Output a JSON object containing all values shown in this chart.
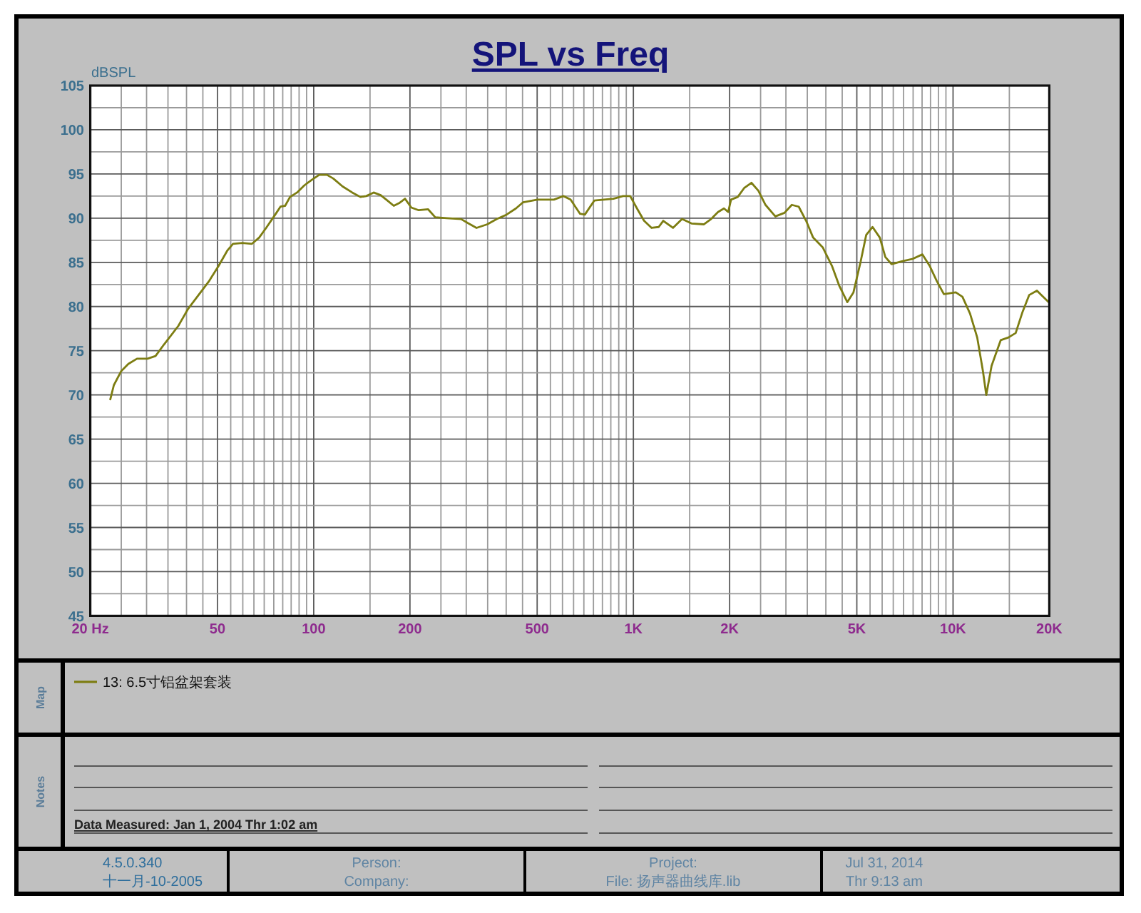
{
  "chart_data": {
    "type": "line",
    "title": "SPL vs Freq",
    "ylabel": "dBSPL",
    "log": "x",
    "xlim": [
      20,
      20000
    ],
    "ylim": [
      45,
      105
    ],
    "xticks": [
      {
        "value": 20,
        "label": "20 Hz"
      },
      {
        "value": 25,
        "label": null
      },
      {
        "value": 30,
        "label": null
      },
      {
        "value": 35,
        "label": null
      },
      {
        "value": 40,
        "label": null
      },
      {
        "value": 45,
        "label": null
      },
      50,
      {
        "value": 55,
        "label": null
      },
      {
        "value": 60,
        "label": null
      },
      {
        "value": 65,
        "label": null
      },
      {
        "value": 70,
        "label": null
      },
      {
        "value": 75,
        "label": null
      },
      {
        "value": 80,
        "label": null
      },
      {
        "value": 85,
        "label": null
      },
      {
        "value": 90,
        "label": null
      },
      {
        "value": 95,
        "label": null
      },
      100,
      {
        "value": 150,
        "label": null
      },
      200,
      {
        "value": 250,
        "label": null
      },
      {
        "value": 300,
        "label": null
      },
      {
        "value": 350,
        "label": null
      },
      {
        "value": 400,
        "label": null
      },
      {
        "value": 450,
        "label": null
      },
      500,
      {
        "value": 550,
        "label": null
      },
      {
        "value": 600,
        "label": null
      },
      {
        "value": 650,
        "label": null
      },
      {
        "value": 700,
        "label": null
      },
      {
        "value": 750,
        "label": null
      },
      {
        "value": 800,
        "label": null
      },
      {
        "value": 850,
        "label": null
      },
      {
        "value": 900,
        "label": null
      },
      {
        "value": 950,
        "label": null
      },
      {
        "value": 1000,
        "label": "1K"
      },
      {
        "value": 1500,
        "label": null
      },
      {
        "value": 2000,
        "label": "2K"
      },
      {
        "value": 2500,
        "label": null
      },
      {
        "value": 3000,
        "label": null
      },
      {
        "value": 3500,
        "label": null
      },
      {
        "value": 4000,
        "label": null
      },
      {
        "value": 4500,
        "label": null
      },
      {
        "value": 5000,
        "label": "5K"
      },
      {
        "value": 5500,
        "label": null
      },
      {
        "value": 6000,
        "label": null
      },
      {
        "value": 6500,
        "label": null
      },
      {
        "value": 7000,
        "label": null
      },
      {
        "value": 7500,
        "label": null
      },
      {
        "value": 8000,
        "label": null
      },
      {
        "value": 8500,
        "label": null
      },
      {
        "value": 9000,
        "label": null
      },
      {
        "value": 9500,
        "label": null
      },
      {
        "value": 10000,
        "label": "10K"
      },
      {
        "value": 15000,
        "label": null
      },
      {
        "value": 20000,
        "label": "20K"
      }
    ],
    "yticks": [
      45,
      {
        "value": 47.5,
        "label": null
      },
      50,
      {
        "value": 52.5,
        "label": null
      },
      55,
      {
        "value": 57.5,
        "label": null
      },
      60,
      {
        "value": 62.5,
        "label": null
      },
      65,
      {
        "value": 67.5,
        "label": null
      },
      70,
      {
        "value": 72.5,
        "label": null
      },
      75,
      {
        "value": 77.5,
        "label": null
      },
      80,
      {
        "value": 82.5,
        "label": null
      },
      85,
      {
        "value": 87.5,
        "label": null
      },
      90,
      {
        "value": 92.5,
        "label": null
      },
      95,
      {
        "value": 97.5,
        "label": null
      },
      100,
      {
        "value": 102.5,
        "label": null
      },
      105
    ],
    "grid": true,
    "legend": "bottom",
    "series": [
      {
        "name": "13: 6.5寸铝盆架套装",
        "color": "#7d7d12",
        "x": [
          23.1,
          23.7,
          25.0,
          26.3,
          28.0,
          30.2,
          32.0,
          34.0,
          37.7,
          40.4,
          43.2,
          47.1,
          50.4,
          53.6,
          55.9,
          59.8,
          64.1,
          67.5,
          71.0,
          76.1,
          78.7,
          81.4,
          84.3,
          88.7,
          93.4,
          98.3,
          104,
          110,
          115,
          123,
          132,
          140,
          146,
          154,
          162,
          170,
          178,
          185,
          193,
          202,
          213,
          228,
          240,
          261,
          289,
          305,
          323,
          349,
          374,
          401,
          429,
          452,
          501,
          564,
          604,
          636,
          681,
          705,
          755,
          809,
          866,
          928,
          977,
          1030,
          1080,
          1140,
          1200,
          1240,
          1330,
          1420,
          1520,
          1660,
          1750,
          1840,
          1920,
          1980,
          2020,
          2120,
          2220,
          2340,
          2460,
          2590,
          2780,
          2970,
          3130,
          3290,
          3470,
          3650,
          3910,
          4180,
          4400,
          4670,
          4880,
          5140,
          5350,
          5600,
          5900,
          6140,
          6420,
          6880,
          7490,
          8020,
          8450,
          8890,
          9360,
          10200,
          10700,
          11300,
          11900,
          12400,
          12700,
          13200,
          14100,
          14900,
          15700,
          16500,
          17300,
          18300,
          18900,
          19900
        ],
        "values": [
          69.5,
          71.1,
          72.7,
          73.5,
          74.1,
          74.1,
          74.4,
          75.7,
          77.8,
          79.7,
          81.1,
          82.9,
          84.6,
          86.3,
          87.1,
          87.2,
          87.1,
          87.8,
          88.9,
          90.5,
          91.3,
          91.4,
          92.4,
          92.9,
          93.7,
          94.3,
          94.9,
          94.9,
          94.5,
          93.6,
          92.9,
          92.4,
          92.5,
          92.9,
          92.6,
          92.0,
          91.4,
          91.7,
          92.2,
          91.2,
          90.9,
          91.0,
          90.1,
          90.0,
          89.9,
          89.4,
          88.9,
          89.3,
          89.9,
          90.4,
          91.1,
          91.8,
          92.1,
          92.1,
          92.5,
          92.1,
          90.5,
          90.4,
          92.0,
          92.1,
          92.2,
          92.5,
          92.5,
          91.0,
          89.7,
          88.9,
          89.0,
          89.7,
          88.9,
          89.9,
          89.4,
          89.3,
          89.9,
          90.7,
          91.1,
          90.7,
          92.1,
          92.4,
          93.4,
          94.0,
          93.1,
          91.5,
          90.2,
          90.6,
          91.5,
          91.3,
          89.7,
          87.8,
          86.7,
          84.6,
          82.4,
          80.5,
          81.6,
          85.1,
          88.1,
          89.0,
          87.8,
          85.6,
          84.8,
          85.1,
          85.4,
          85.9,
          84.6,
          82.9,
          81.4,
          81.6,
          81.1,
          79.2,
          76.5,
          72.7,
          70.0,
          73.3,
          76.2,
          76.5,
          77.0,
          79.4,
          81.3,
          81.8,
          81.3,
          80.5
        ]
      }
    ],
    "annotations": [
      "Map",
      "Notes",
      "Data Measured: Jan 1, 2004 Thr 1:02 am",
      "4.5.0.340",
      "十一月-10-2005",
      "Person:",
      "Company:",
      "Project:",
      "File: 扬声器曲线库.lib",
      "Jul 31, 2014",
      "Thr 9:13 am"
    ]
  }
}
